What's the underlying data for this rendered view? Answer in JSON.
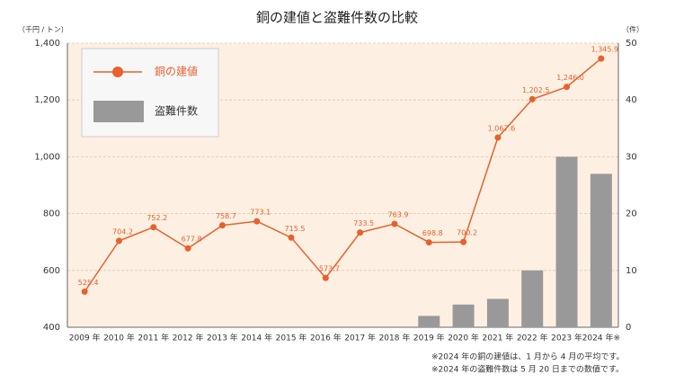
{
  "chart_data": {
    "type": "combo",
    "title": "銅の建値と盗難件数の比較",
    "y_unit": "（千円 / トン）",
    "y2_unit": "（件）",
    "categories": [
      "2009 年",
      "2010 年",
      "2011 年",
      "2012 年",
      "2013 年",
      "2014 年",
      "2015 年",
      "2016 年",
      "2017 年",
      "2018 年",
      "2019 年",
      "2020 年",
      "2021 年",
      "2022 年",
      "2023 年",
      "2024 年※"
    ],
    "series": [
      {
        "name": "銅の建値",
        "type": "line",
        "color": "#e8602c",
        "values": [
          525.4,
          704.2,
          752.2,
          677.8,
          758.7,
          773.1,
          715.5,
          573.7,
          733.5,
          763.9,
          698.8,
          700.2,
          1067.6,
          1202.5,
          1246.0,
          1345.9
        ],
        "value_labels": [
          "525.4",
          "704.2",
          "752.2",
          "677.8",
          "758.7",
          "773.1",
          "715.5",
          "573.7",
          "733.5",
          "763.9",
          "698.8",
          "700.2",
          "1,067.6",
          "1,202.5",
          "1,246.0",
          "1,345.9"
        ]
      },
      {
        "name": "盗難件数",
        "type": "bar",
        "axis": "y2",
        "color": "#999999",
        "values": [
          null,
          null,
          null,
          null,
          null,
          null,
          null,
          null,
          null,
          null,
          2,
          4,
          5,
          10,
          30,
          27
        ]
      }
    ],
    "ylim": [
      400,
      1400
    ],
    "yticks": [
      400,
      600,
      800,
      {
        "value": 1000,
        "label": "1,000"
      },
      {
        "value": 1200,
        "label": "1,200"
      },
      {
        "value": 1400,
        "label": "1,400"
      }
    ],
    "y2lim": [
      0,
      50
    ],
    "y2ticks": [
      0,
      10,
      20,
      30,
      40,
      50
    ],
    "grid": true,
    "legend": "top-left",
    "notes": [
      "※2024 年の銅の建値は、1 月から 4 月の平均です。",
      "※2024 年の盗難件数は 5 月 20 日までの数値です。"
    ]
  }
}
